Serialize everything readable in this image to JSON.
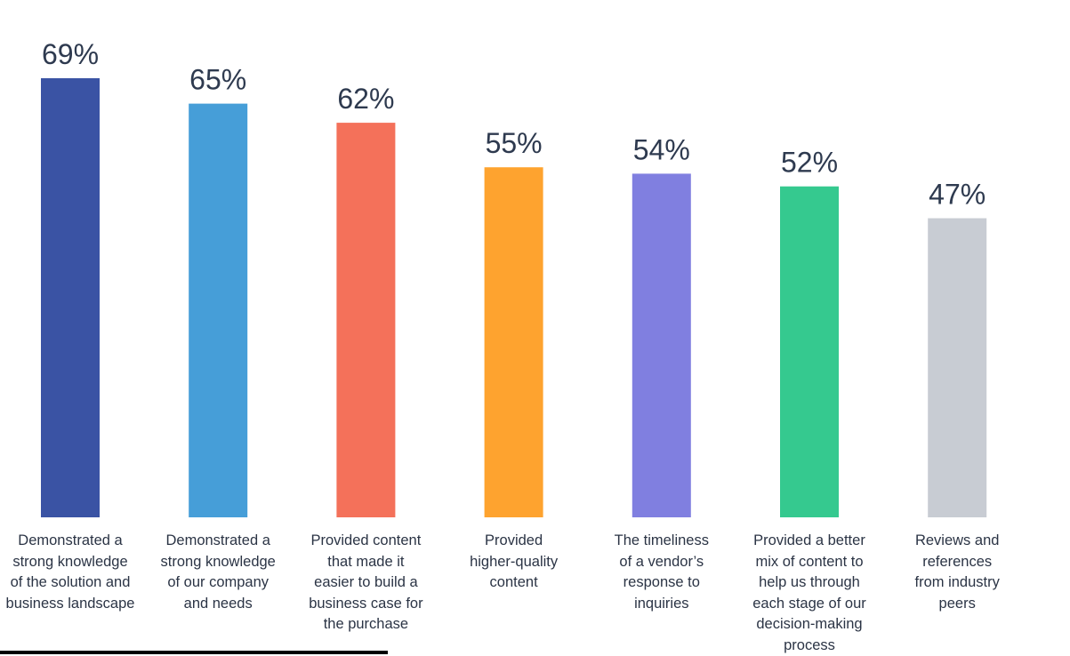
{
  "chart_data": {
    "type": "bar",
    "categories": [
      [
        "Demonstrated a",
        "strong knowledge",
        "of the solution and",
        "business landscape"
      ],
      [
        "Demonstrated a",
        "strong knowledge",
        "of our company",
        "and needs"
      ],
      [
        "Provided content",
        "that made it",
        "easier to build a",
        "business case for",
        "the purchase"
      ],
      [
        "Provided",
        "higher-quality",
        "content"
      ],
      [
        "The timeliness",
        "of a vendor’s",
        "response to",
        "inquiries"
      ],
      [
        "Provided a better",
        "mix of content to",
        "help us through",
        "each stage of our",
        "decision-making",
        "process"
      ],
      [
        "Reviews and",
        "references",
        "from industry",
        "peers"
      ]
    ],
    "values": [
      69,
      65,
      62,
      55,
      54,
      52,
      47
    ],
    "value_labels": [
      "69%",
      "65%",
      "62%",
      "55%",
      "54%",
      "52%",
      "47%"
    ],
    "colors": [
      "#3a53a4",
      "#469ed8",
      "#f4715a",
      "#fea32f",
      "#807fe0",
      "#35c98f",
      "#c8ccd3"
    ],
    "ylim": [
      0,
      100
    ],
    "grid": false,
    "legend": "none"
  }
}
